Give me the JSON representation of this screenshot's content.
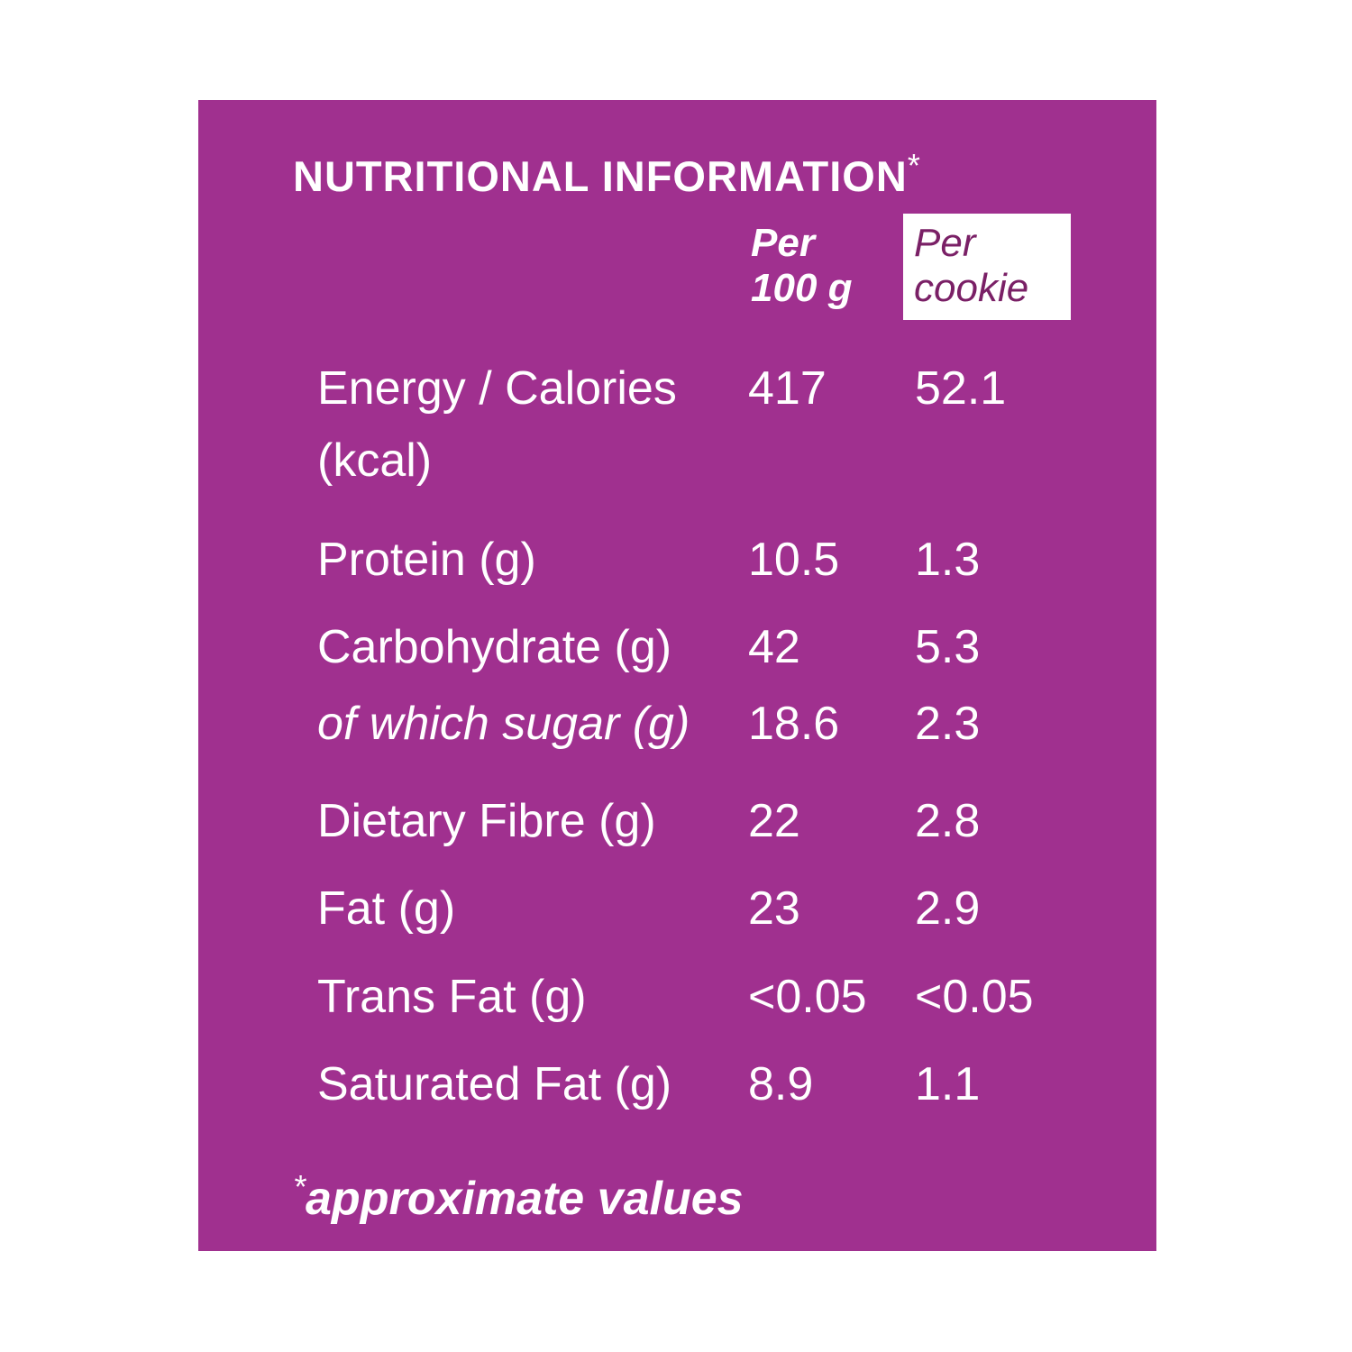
{
  "title": "NUTRITIONAL INFORMATION",
  "title_mark": "*",
  "columns": [
    "Per 100 g",
    "Per cookie"
  ],
  "rows": [
    {
      "label": "Energy / Calories (kcal)",
      "per_100g": 417,
      "per_cookie": 52.1
    },
    {
      "label": "Protein (g)",
      "per_100g": 10.5,
      "per_cookie": 1.3
    },
    {
      "label": "Carbohydrate (g)",
      "per_100g": 42,
      "per_cookie": 5.3
    },
    {
      "label": "of which sugar (g)",
      "per_100g": 18.6,
      "per_cookie": 2.3
    },
    {
      "label": "Dietary Fibre (g)",
      "per_100g": 22,
      "per_cookie": 2.8
    },
    {
      "label": "Fat (g)",
      "per_100g": 23,
      "per_cookie": 2.9
    },
    {
      "label": "Trans Fat (g)",
      "per_100g": "<0.05",
      "per_cookie": "<0.05"
    },
    {
      "label": "Saturated Fat (g)",
      "per_100g": 8.9,
      "per_cookie": 1.1
    }
  ],
  "footnote_mark": "*",
  "footnote": "approximate values"
}
